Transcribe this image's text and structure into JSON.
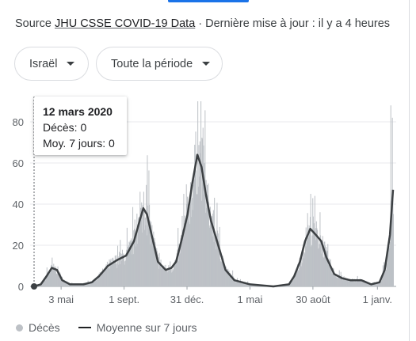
{
  "header": {
    "source_prefix": "Source ",
    "source_link": "JHU CSSE COVID-19 Data",
    "update_text": " · Dernière mise à jour : il y a 4 heures"
  },
  "filters": {
    "country": "Israël",
    "period": "Toute la période"
  },
  "tooltip": {
    "date": "12 mars 2020",
    "deaths_line": "Décès: 0",
    "avg_line": "Moy. 7 jours: 0"
  },
  "legend": {
    "deaths": "Décès",
    "avg": "Moyenne sur 7 jours"
  },
  "colors": {
    "bars": "#bdc1c6",
    "avg_line": "#3c4043",
    "accent": "#1a73e8"
  },
  "chart_data": {
    "type": "bar",
    "title": "",
    "xlabel": "",
    "ylabel": "",
    "ylim": [
      0,
      90
    ],
    "y_ticks": [
      0,
      20,
      40,
      60,
      80
    ],
    "x_ticks": [
      "3 mai",
      "1 sept.",
      "31 déc.",
      "1 mai",
      "30 août",
      "1 janv."
    ],
    "x_start": "2020-03-12",
    "x_end": "2022-01-31",
    "x_tick_dates": [
      "2020-05-03",
      "2020-09-01",
      "2020-12-31",
      "2021-05-01",
      "2021-08-30",
      "2022-01-01"
    ],
    "series": [
      {
        "name": "Moyenne sur 7 jours",
        "type": "line",
        "points": [
          [
            "2020-03-12",
            0
          ],
          [
            "2020-03-25",
            1
          ],
          [
            "2020-04-05",
            5
          ],
          [
            "2020-04-15",
            9
          ],
          [
            "2020-04-25",
            8
          ],
          [
            "2020-05-05",
            3
          ],
          [
            "2020-05-20",
            1
          ],
          [
            "2020-06-15",
            1
          ],
          [
            "2020-07-01",
            2
          ],
          [
            "2020-07-15",
            5
          ],
          [
            "2020-08-01",
            10
          ],
          [
            "2020-08-20",
            13
          ],
          [
            "2020-09-05",
            15
          ],
          [
            "2020-09-20",
            22
          ],
          [
            "2020-10-01",
            32
          ],
          [
            "2020-10-08",
            38
          ],
          [
            "2020-10-15",
            35
          ],
          [
            "2020-10-25",
            24
          ],
          [
            "2020-11-05",
            12
          ],
          [
            "2020-11-20",
            8
          ],
          [
            "2020-12-01",
            9
          ],
          [
            "2020-12-10",
            12
          ],
          [
            "2020-12-20",
            22
          ],
          [
            "2021-01-01",
            35
          ],
          [
            "2021-01-10",
            50
          ],
          [
            "2021-01-20",
            64
          ],
          [
            "2021-01-28",
            58
          ],
          [
            "2021-02-05",
            45
          ],
          [
            "2021-02-15",
            32
          ],
          [
            "2021-03-01",
            20
          ],
          [
            "2021-03-15",
            8
          ],
          [
            "2021-04-01",
            3
          ],
          [
            "2021-05-01",
            1
          ],
          [
            "2021-06-15",
            0
          ],
          [
            "2021-07-15",
            1
          ],
          [
            "2021-07-25",
            5
          ],
          [
            "2021-08-05",
            12
          ],
          [
            "2021-08-15",
            22
          ],
          [
            "2021-08-25",
            28
          ],
          [
            "2021-09-05",
            25
          ],
          [
            "2021-09-15",
            22
          ],
          [
            "2021-09-25",
            14
          ],
          [
            "2021-10-10",
            6
          ],
          [
            "2021-10-25",
            4
          ],
          [
            "2021-11-10",
            3
          ],
          [
            "2021-12-01",
            3
          ],
          [
            "2021-12-20",
            1
          ],
          [
            "2022-01-05",
            2
          ],
          [
            "2022-01-15",
            8
          ],
          [
            "2022-01-25",
            25
          ],
          [
            "2022-01-31",
            47
          ]
        ]
      },
      {
        "name": "Décès",
        "type": "bar",
        "peaks": [
          [
            "2020-04-15",
            14
          ],
          [
            "2020-10-01",
            46
          ],
          [
            "2020-10-08",
            46
          ],
          [
            "2021-01-20",
            90
          ],
          [
            "2021-01-26",
            90
          ],
          [
            "2021-08-25",
            45
          ],
          [
            "2021-09-02",
            44
          ],
          [
            "2022-01-26",
            88
          ],
          [
            "2022-01-29",
            82
          ]
        ]
      }
    ],
    "legend_position": "bottom-left",
    "grid": "horizontal"
  }
}
